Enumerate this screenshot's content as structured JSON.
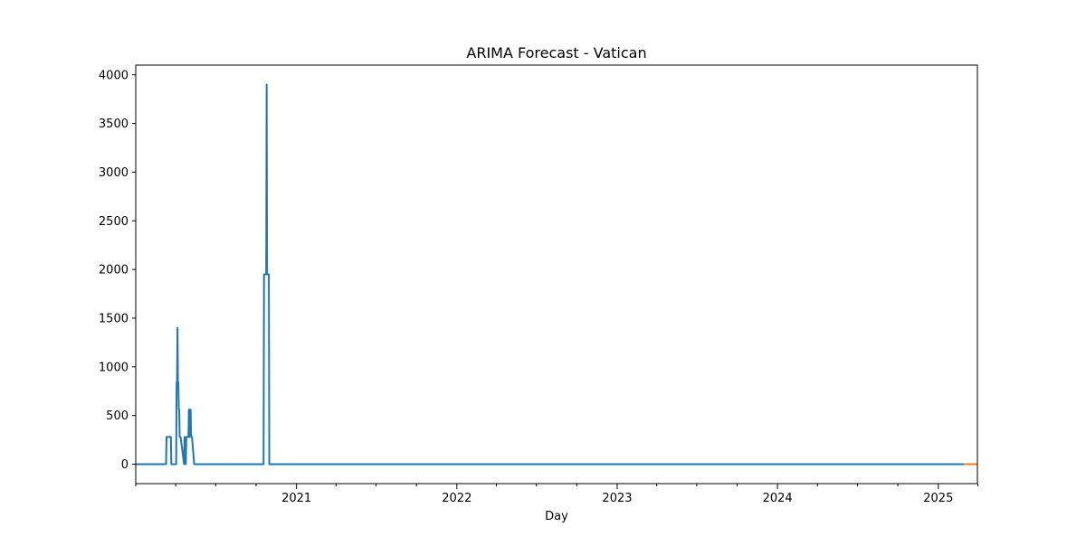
{
  "chart_data": {
    "type": "line",
    "title": "ARIMA Forecast - Vatican",
    "xlabel": "Day",
    "ylabel": "",
    "xlim": [
      "2020-01-01",
      "2025-03-31"
    ],
    "ylim": [
      -200,
      4100
    ],
    "yticks": [
      0,
      500,
      1000,
      1500,
      2000,
      2500,
      3000,
      3500,
      4000
    ],
    "xticks_major": [
      "2021-01-01",
      "2022-01-01",
      "2023-01-01",
      "2024-01-01",
      "2025-01-01"
    ],
    "xtick_labels": [
      "2021",
      "2022",
      "2023",
      "2024",
      "2025"
    ],
    "xticks_minor": [
      "2020-01-01",
      "2020-04-01",
      "2020-07-01",
      "2020-10-01",
      "2021-04-01",
      "2021-07-01",
      "2021-10-01",
      "2022-04-01",
      "2022-07-01",
      "2022-10-01",
      "2023-04-01",
      "2023-07-01",
      "2023-10-01",
      "2024-04-01",
      "2024-07-01",
      "2024-10-01",
      "2025-04-01"
    ],
    "grid": false,
    "series": [
      {
        "color": "#1f77b4",
        "x": [
          "2020-01-01",
          "2020-03-10",
          "2020-03-11",
          "2020-03-21",
          "2020-03-22",
          "2020-04-02",
          "2020-04-03",
          "2020-04-04",
          "2020-04-05",
          "2020-04-06",
          "2020-04-07",
          "2020-04-08",
          "2020-04-09",
          "2020-04-10",
          "2020-04-11",
          "2020-04-12",
          "2020-04-20",
          "2020-04-21",
          "2020-04-22",
          "2020-04-24",
          "2020-04-25",
          "2020-04-30",
          "2020-05-01",
          "2020-05-02",
          "2020-05-04",
          "2020-05-05",
          "2020-05-06",
          "2020-05-07",
          "2020-05-08",
          "2020-05-13",
          "2020-05-14",
          "2020-10-18",
          "2020-10-19",
          "2020-10-24",
          "2020-10-25",
          "2020-10-26",
          "2020-10-27",
          "2020-10-28",
          "2020-10-30",
          "2020-10-31",
          "2025-03-01"
        ],
        "values": [
          0,
          0,
          280,
          280,
          0,
          0,
          840,
          840,
          1400,
          840,
          840,
          560,
          560,
          280,
          280,
          280,
          0,
          280,
          280,
          0,
          280,
          280,
          560,
          280,
          560,
          560,
          280,
          280,
          280,
          0,
          0,
          0,
          1950,
          1950,
          3900,
          1950,
          1950,
          1950,
          1950,
          0,
          0
        ]
      },
      {
        "color": "#ff7f0e",
        "x": [
          "2025-03-01",
          "2025-03-31"
        ],
        "values": [
          0,
          0
        ]
      }
    ]
  }
}
